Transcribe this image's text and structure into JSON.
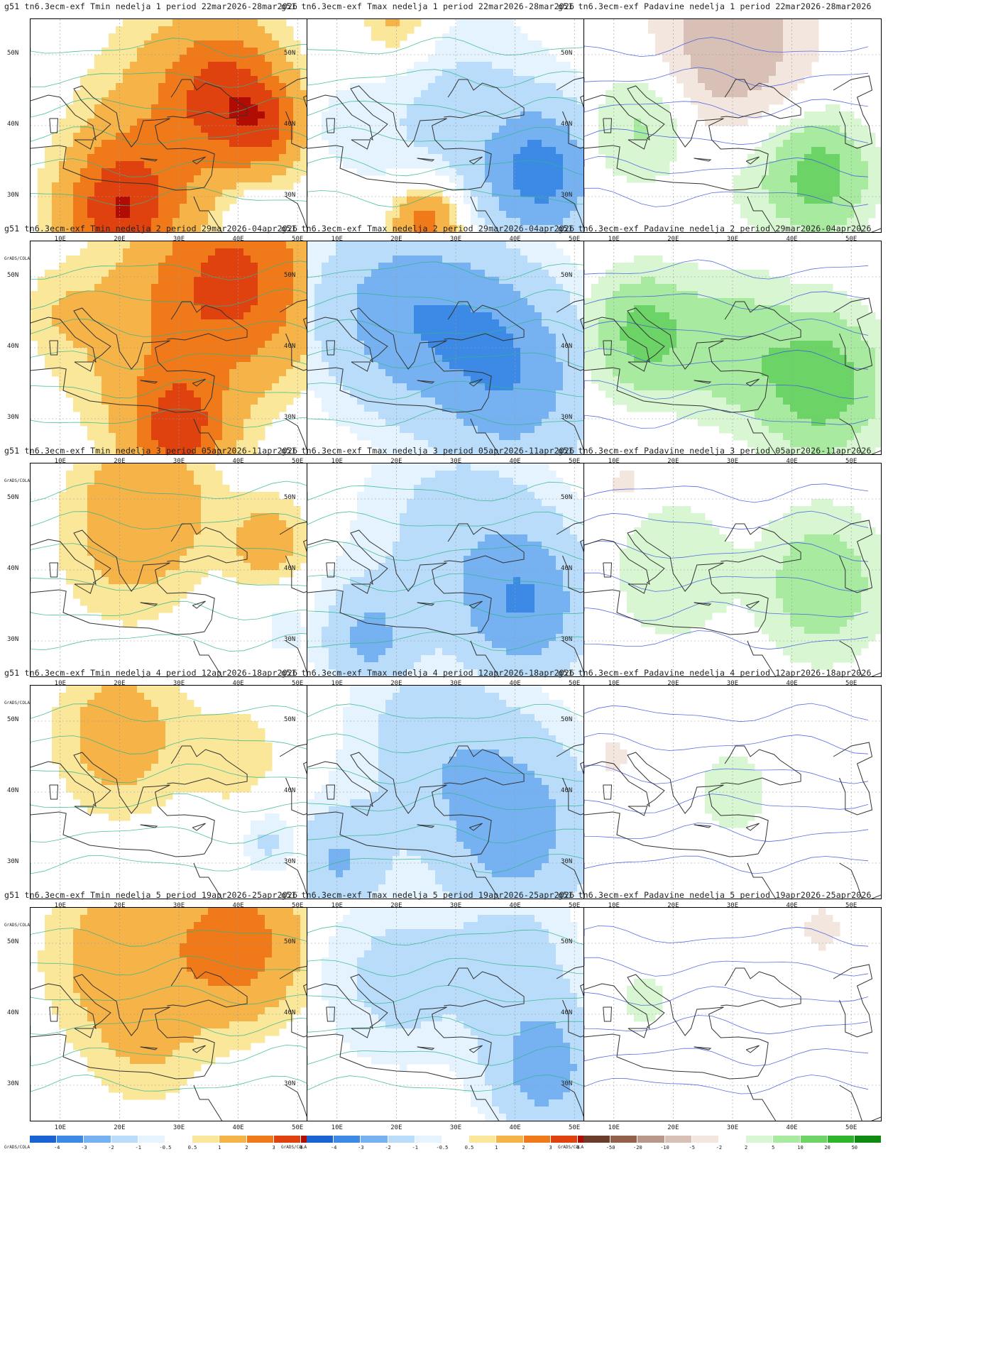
{
  "chart_data": {
    "type": "heatmap",
    "rows": [
      {
        "week": 1,
        "period": "22mar2026-28mar2026",
        "panels": [
          {
            "title": "g51 tn6.3ecm-exf Tmin nedelja 1 period 22mar2026-28mar2026",
            "variable": "Tmin",
            "legend": "temp"
          },
          {
            "title": "g51 tn6.3ecm-exf Tmax nedelja 1 period 22mar2026-28mar2026",
            "variable": "Tmax",
            "legend": "temp"
          },
          {
            "title": "g51 tn6.3ecm-exf Padavine nedelja 1 period 22mar2026-28mar2026",
            "variable": "Padavine",
            "legend": "precip"
          }
        ]
      },
      {
        "week": 2,
        "period": "29mar2026-04apr2026",
        "panels": [
          {
            "title": "g51 tn6.3ecm-exf Tmin nedelja 2 period 29mar2026-04apr2026",
            "variable": "Tmin",
            "legend": "temp"
          },
          {
            "title": "g51 tn6.3ecm-exf Tmax nedelja 2 period 29mar2026-04apr2026",
            "variable": "Tmax",
            "legend": "temp"
          },
          {
            "title": "g51 tn6.3ecm-exf Padavine nedelja 2 period 29mar2026-04apr2026",
            "variable": "Padavine",
            "legend": "precip"
          }
        ]
      },
      {
        "week": 3,
        "period": "05apr2026-11apr2026",
        "panels": [
          {
            "title": "g51 tn6.3ecm-exf Tmin nedelja 3 period 05apr2026-11apr2026",
            "variable": "Tmin",
            "legend": "temp"
          },
          {
            "title": "g51 tn6.3ecm-exf Tmax nedelja 3 period 05apr2026-11apr2026",
            "variable": "Tmax",
            "legend": "temp"
          },
          {
            "title": "g51 tn6.3ecm-exf Padavine nedelja 3 period 05apr2026-11apr2026",
            "variable": "Padavine",
            "legend": "precip"
          }
        ]
      },
      {
        "week": 4,
        "period": "12apr2026-18apr2026",
        "panels": [
          {
            "title": "g51 tn6.3ecm-exf Tmin nedelja 4 period 12apr2026-18apr2026",
            "variable": "Tmin",
            "legend": "temp"
          },
          {
            "title": "g51 tn6.3ecm-exf Tmax nedelja 4 period 12apr2026-18apr2026",
            "variable": "Tmax",
            "legend": "temp"
          },
          {
            "title": "g51 tn6.3ecm-exf Padavine nedelja 4 period 12apr2026-18apr2026",
            "variable": "Padavine",
            "legend": "precip"
          }
        ]
      },
      {
        "week": 5,
        "period": "19apr2026-25apr2026",
        "panels": [
          {
            "title": "g51 tn6.3ecm-exf Tmin nedelja 5 period 19apr2026-25apr2026",
            "variable": "Tmin",
            "legend": "temp"
          },
          {
            "title": "g51 tn6.3ecm-exf Tmax nedelja 5 period 19apr2026-25apr2026",
            "variable": "Tmax",
            "legend": "temp"
          },
          {
            "title": "g51 tn6.3ecm-exf Padavine nedelja 5 period 19apr2026-25apr2026",
            "variable": "Padavine",
            "legend": "precip"
          }
        ]
      }
    ],
    "x_ticks": [
      "10E",
      "20E",
      "30E",
      "40E",
      "50E"
    ],
    "y_ticks": [
      "50N",
      "40N",
      "30N"
    ],
    "xlim": [
      5,
      55
    ],
    "ylim": [
      25,
      55
    ],
    "credit": "GrADS/COLA",
    "legends": {
      "temp": {
        "ticks": [
          "-4",
          "-3",
          "-2",
          "-1",
          "-0.5",
          "0.5",
          "1",
          "2",
          "3",
          "4"
        ],
        "colors": [
          "#1a63d4",
          "#3c8ae6",
          "#76b2f2",
          "#b9dcfa",
          "#e4f3fd",
          "#ffffff",
          "#fbe79a",
          "#f5b348",
          "#f07a1a",
          "#e0420f",
          "#b00c04"
        ]
      },
      "precip": {
        "ticks": [
          "-50",
          "-20",
          "-10",
          "-5",
          "-2",
          "2",
          "5",
          "10",
          "20",
          "50"
        ],
        "colors": [
          "#6b3c2a",
          "#93604c",
          "#b8968a",
          "#d8c0b6",
          "#f3e6df",
          "#ffffff",
          "#d8f6d2",
          "#a8eaa0",
          "#6cd466",
          "#2fb52c",
          "#0f8a10"
        ]
      }
    },
    "anomaly_fields": [
      {
        "variable": "Tmin",
        "week": 1,
        "blobs": [
          {
            "lon": 38,
            "lat": 45,
            "r": 12,
            "v": 2.5
          },
          {
            "lon": 20,
            "lat": 28,
            "r": 12,
            "v": 3.5
          },
          {
            "lon": 45,
            "lat": 40,
            "r": 8,
            "v": 2
          },
          {
            "lon": 30,
            "lat": 40,
            "r": 20,
            "v": 1.5
          },
          {
            "lon": 42,
            "lat": 28,
            "r": 6,
            "v": -0.7
          }
        ]
      },
      {
        "variable": "Tmax",
        "week": 1,
        "blobs": [
          {
            "lon": 45,
            "lat": 33,
            "r": 12,
            "v": -3
          },
          {
            "lon": 30,
            "lat": 40,
            "r": 22,
            "v": -1.3
          },
          {
            "lon": 25,
            "lat": 26,
            "r": 8,
            "v": 3
          },
          {
            "lon": 20,
            "lat": 55,
            "r": 8,
            "v": 1.5
          },
          {
            "lon": 10,
            "lat": 40,
            "r": 8,
            "v": -0.3
          }
        ]
      },
      {
        "variable": "Padavine",
        "week": 1,
        "blobs": [
          {
            "lon": 30,
            "lat": 51,
            "r": 16,
            "v": -8
          },
          {
            "lon": 45,
            "lat": 33,
            "r": 10,
            "v": 12
          },
          {
            "lon": 15,
            "lat": 40,
            "r": 10,
            "v": 6
          },
          {
            "lon": 35,
            "lat": 33,
            "r": 12,
            "v": 3
          }
        ]
      },
      {
        "variable": "Tmin",
        "week": 2,
        "blobs": [
          {
            "lon": 40,
            "lat": 50,
            "r": 18,
            "v": 3
          },
          {
            "lon": 30,
            "lat": 28,
            "r": 10,
            "v": 3
          },
          {
            "lon": 25,
            "lat": 40,
            "r": 20,
            "v": 1.2
          },
          {
            "lon": 10,
            "lat": 45,
            "r": 8,
            "v": 0.6
          }
        ]
      },
      {
        "variable": "Tmax",
        "week": 2,
        "blobs": [
          {
            "lon": 20,
            "lat": 45,
            "r": 18,
            "v": -2.5
          },
          {
            "lon": 40,
            "lat": 35,
            "r": 18,
            "v": -2.5
          },
          {
            "lon": 35,
            "lat": 45,
            "r": 14,
            "v": -0.8
          }
        ]
      },
      {
        "variable": "Padavine",
        "week": 2,
        "blobs": [
          {
            "lon": 15,
            "lat": 42,
            "r": 10,
            "v": 12
          },
          {
            "lon": 30,
            "lat": 40,
            "r": 12,
            "v": 8
          },
          {
            "lon": 45,
            "lat": 35,
            "r": 12,
            "v": 14
          }
        ]
      },
      {
        "variable": "Tmin",
        "week": 3,
        "blobs": [
          {
            "lon": 25,
            "lat": 50,
            "r": 14,
            "v": 1.5
          },
          {
            "lon": 45,
            "lat": 44,
            "r": 8,
            "v": 1.5
          },
          {
            "lon": 20,
            "lat": 42,
            "r": 16,
            "v": 0.7
          },
          {
            "lon": 48,
            "lat": 32,
            "r": 6,
            "v": -0.8
          }
        ]
      },
      {
        "variable": "Tmax",
        "week": 3,
        "blobs": [
          {
            "lon": 30,
            "lat": 45,
            "r": 22,
            "v": -1.3
          },
          {
            "lon": 42,
            "lat": 35,
            "r": 14,
            "v": -2.5
          },
          {
            "lon": 15,
            "lat": 30,
            "r": 10,
            "v": -2
          }
        ]
      },
      {
        "variable": "Padavine",
        "week": 3,
        "blobs": [
          {
            "lon": 45,
            "lat": 38,
            "r": 12,
            "v": 9
          },
          {
            "lon": 20,
            "lat": 40,
            "r": 12,
            "v": 5
          },
          {
            "lon": 12,
            "lat": 52,
            "r": 5,
            "v": -3
          }
        ]
      },
      {
        "variable": "Tmin",
        "week": 4,
        "blobs": [
          {
            "lon": 20,
            "lat": 48,
            "r": 14,
            "v": 1.5
          },
          {
            "lon": 40,
            "lat": 45,
            "r": 10,
            "v": 0.8
          },
          {
            "lon": 45,
            "lat": 33,
            "r": 6,
            "v": -1.2
          }
        ]
      },
      {
        "variable": "Tmax",
        "week": 4,
        "blobs": [
          {
            "lon": 40,
            "lat": 35,
            "r": 18,
            "v": -2.5
          },
          {
            "lon": 25,
            "lat": 48,
            "r": 18,
            "v": -1.3
          },
          {
            "lon": 10,
            "lat": 30,
            "r": 10,
            "v": -2
          }
        ]
      },
      {
        "variable": "Padavine",
        "week": 4,
        "blobs": [
          {
            "lon": 30,
            "lat": 40,
            "r": 10,
            "v": 3
          },
          {
            "lon": 10,
            "lat": 45,
            "r": 4,
            "v": -3
          }
        ]
      },
      {
        "variable": "Tmin",
        "week": 5,
        "blobs": [
          {
            "lon": 40,
            "lat": 50,
            "r": 14,
            "v": 2.5
          },
          {
            "lon": 20,
            "lat": 48,
            "r": 16,
            "v": 1.5
          },
          {
            "lon": 25,
            "lat": 35,
            "r": 12,
            "v": 0.7
          }
        ]
      },
      {
        "variable": "Tmax",
        "week": 5,
        "blobs": [
          {
            "lon": 45,
            "lat": 32,
            "r": 12,
            "v": -2.5
          },
          {
            "lon": 20,
            "lat": 45,
            "r": 16,
            "v": -1.3
          },
          {
            "lon": 40,
            "lat": 48,
            "r": 14,
            "v": -1.3
          }
        ]
      },
      {
        "variable": "Padavine",
        "week": 5,
        "blobs": [
          {
            "lon": 15,
            "lat": 42,
            "r": 6,
            "v": 3
          },
          {
            "lon": 45,
            "lat": 52,
            "r": 5,
            "v": -3
          }
        ]
      }
    ]
  }
}
